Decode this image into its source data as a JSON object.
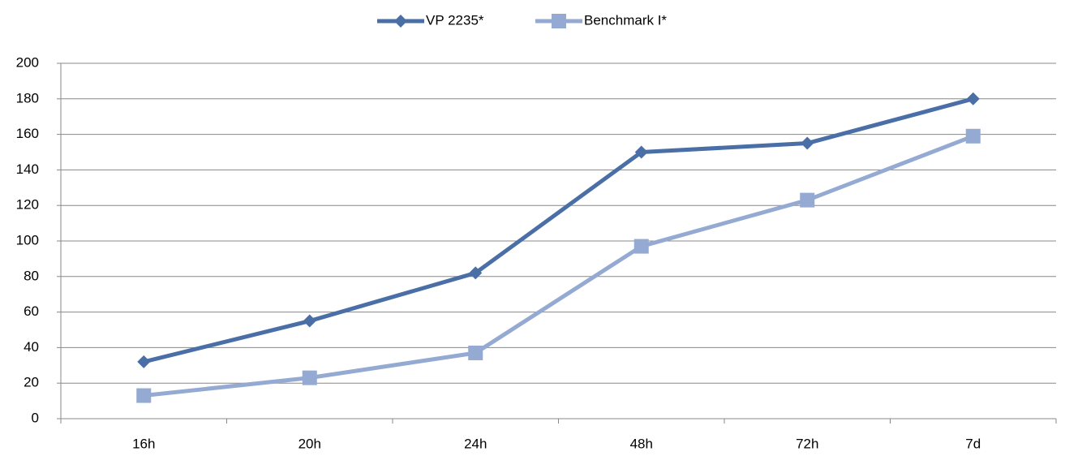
{
  "chart_data": {
    "type": "line",
    "categories": [
      "16h",
      "20h",
      "24h",
      "48h",
      "72h",
      "7d"
    ],
    "series": [
      {
        "name": "VP 2235*",
        "color": "#4a6fa6",
        "marker": "diamond",
        "values": [
          32,
          55,
          82,
          150,
          155,
          180
        ]
      },
      {
        "name": "Benchmark I*",
        "color": "#94aad3",
        "marker": "square",
        "values": [
          13,
          23,
          37,
          97,
          123,
          159
        ]
      }
    ],
    "ylim": [
      0,
      200
    ],
    "yticks": [
      0,
      20,
      40,
      60,
      80,
      100,
      120,
      140,
      160,
      180,
      200
    ],
    "grid": true,
    "legend": "top"
  }
}
